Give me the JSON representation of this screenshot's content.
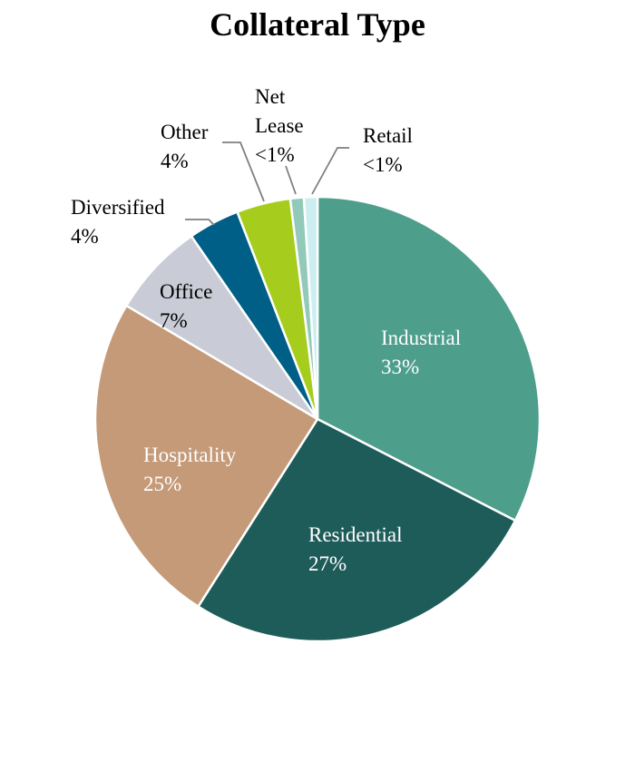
{
  "chart_data": {
    "type": "pie",
    "title": "Collateral Type",
    "slices": [
      {
        "label_lines": [
          "Industrial"
        ],
        "pct_text": "33%",
        "value": 33.2,
        "color": "#4e9e8c",
        "text_color": "#ffffff"
      },
      {
        "label_lines": [
          "Residential"
        ],
        "pct_text": "27%",
        "value": 27,
        "color": "#1e5c5a",
        "text_color": "#ffffff"
      },
      {
        "label_lines": [
          "Hospitality"
        ],
        "pct_text": "25%",
        "value": 25,
        "color": "#c49a78",
        "text_color": "#ffffff"
      },
      {
        "label_lines": [
          "Office"
        ],
        "pct_text": "7%",
        "value": 7,
        "color": "#c9ccd6",
        "text_color": "#000000"
      },
      {
        "label_lines": [
          "Diversified"
        ],
        "pct_text": "4%",
        "value": 3.8,
        "color": "#005f87",
        "text_color": "#000000"
      },
      {
        "label_lines": [
          "Other"
        ],
        "pct_text": "4%",
        "value": 4,
        "color": "#a6cd1e",
        "text_color": "#000000"
      },
      {
        "label_lines": [
          "Net",
          "Lease"
        ],
        "pct_text": "<1%",
        "value": 1,
        "color": "#92c9b9",
        "text_color": "#000000"
      },
      {
        "label_lines": [
          "Retail"
        ],
        "pct_text": "<1%",
        "value": 1,
        "color": "#cdeef0",
        "text_color": "#000000"
      }
    ]
  }
}
